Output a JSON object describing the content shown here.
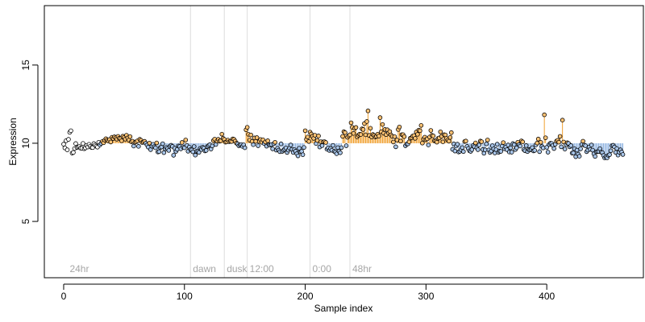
{
  "chart_data": {
    "type": "scatter",
    "title": "",
    "xlabel": "Sample index",
    "ylabel": "Expression",
    "xlim": [
      -16,
      480
    ],
    "ylim": [
      1.4,
      18.8
    ],
    "xticks": [
      0,
      100,
      200,
      300,
      400
    ],
    "yticks": [
      5,
      10,
      15
    ],
    "grid": false,
    "legend": "none",
    "baseline_from_index": 30,
    "baseline_level": 10.0,
    "annotations": [
      {
        "x": 3,
        "label": "24hr",
        "vline": false
      },
      {
        "x": 105,
        "label": "dawn",
        "vline": true
      },
      {
        "x": 133,
        "label": "dusk",
        "vline": true
      },
      {
        "x": 152,
        "label": "12:00",
        "vline": true
      },
      {
        "x": 204,
        "label": "0:00",
        "vline": true
      },
      {
        "x": 237,
        "label": "48hr",
        "vline": true
      }
    ],
    "series": [
      {
        "x": [
          0,
          1,
          2,
          3,
          4,
          5,
          6,
          7,
          8,
          9,
          10,
          11,
          12,
          13,
          14,
          15,
          16,
          17,
          18,
          19,
          20,
          21,
          22,
          23,
          24,
          25,
          26,
          27,
          28,
          29,
          30,
          31,
          32,
          33,
          34,
          35,
          36,
          37,
          38,
          39,
          40,
          41,
          42,
          43,
          44,
          45,
          46,
          47,
          48,
          49,
          50,
          51,
          52,
          53,
          54,
          55,
          56,
          57,
          58,
          59,
          60,
          61,
          62,
          63,
          64,
          65,
          66,
          67,
          68,
          69,
          70,
          71,
          72,
          73,
          74,
          75,
          76,
          77,
          78,
          79,
          80,
          81,
          82,
          83,
          84,
          85,
          86,
          87,
          88,
          89,
          90,
          91,
          92,
          93,
          94,
          95,
          96,
          97,
          98,
          99,
          100,
          101,
          102,
          103,
          104,
          105,
          106,
          107,
          108,
          109,
          110,
          111,
          112,
          113,
          114,
          115,
          116,
          117,
          118,
          119,
          120,
          121,
          122,
          123,
          124,
          125,
          126,
          127,
          128,
          129,
          130,
          131,
          132,
          133,
          134,
          135,
          136,
          137,
          138,
          139,
          140,
          141,
          142,
          143,
          144,
          145,
          146,
          147,
          148,
          149,
          150,
          151,
          152,
          153,
          154,
          155,
          156,
          157,
          158,
          159,
          160,
          161,
          162,
          163,
          164,
          165,
          166,
          167,
          168,
          169,
          170,
          171,
          172,
          173,
          174,
          175,
          176,
          177,
          178,
          179,
          180,
          181,
          182,
          183,
          184,
          185,
          186,
          187,
          188,
          189,
          190,
          191,
          192,
          193,
          194,
          195,
          196,
          197,
          198,
          199,
          200,
          201,
          202,
          203,
          204,
          205,
          206,
          207,
          208,
          209,
          210,
          211,
          212,
          213,
          214,
          215,
          216,
          217,
          218,
          219,
          220,
          221,
          222,
          223,
          224,
          225,
          226,
          227,
          228,
          229,
          230,
          231,
          232,
          233,
          234,
          235,
          236,
          237,
          238,
          239,
          240,
          241,
          242,
          243,
          244,
          245,
          246,
          247,
          248,
          249,
          250,
          251,
          252,
          253,
          254,
          255,
          256,
          257,
          258,
          259,
          260,
          261,
          262,
          263,
          264,
          265,
          266,
          267,
          268,
          269,
          270,
          271,
          272,
          273,
          274,
          275,
          276,
          277,
          278,
          279,
          280,
          281,
          282,
          283,
          284,
          285,
          286,
          287,
          288,
          289,
          290,
          291,
          292,
          293,
          294,
          295,
          296,
          297,
          298,
          299,
          300,
          301,
          302,
          303,
          304,
          305,
          306,
          307,
          308,
          309,
          310,
          311,
          312,
          313,
          314,
          315,
          316,
          317,
          318,
          319,
          320,
          321,
          322,
          323,
          324,
          325,
          326,
          327,
          328,
          329,
          330,
          331,
          332,
          333,
          334,
          335,
          336,
          337,
          338,
          339,
          340,
          341,
          342,
          343,
          344,
          345,
          346,
          347,
          348,
          349,
          350,
          351,
          352,
          353,
          354,
          355,
          356,
          357,
          358,
          359,
          360,
          361,
          362,
          363,
          364,
          365,
          366,
          367,
          368,
          369,
          370,
          371,
          372,
          373,
          374,
          375,
          376,
          377,
          378,
          379,
          380,
          381,
          382,
          383,
          384,
          385,
          386,
          387,
          388,
          389,
          390,
          391,
          392,
          393,
          394,
          395,
          396,
          397,
          398,
          399,
          400,
          401,
          402,
          403,
          404,
          405,
          406,
          407,
          408,
          409,
          410,
          411,
          412,
          413,
          414,
          415,
          416,
          417,
          418,
          419,
          420,
          421,
          422,
          423,
          424,
          425,
          426,
          427,
          428,
          429,
          430,
          431,
          432,
          433,
          434,
          435,
          436,
          437,
          438,
          439,
          440,
          441,
          442,
          443,
          444,
          445,
          446,
          447,
          448,
          449,
          450,
          451,
          452,
          453,
          454,
          455,
          456,
          457,
          458,
          459,
          460,
          461,
          462,
          463
        ],
        "y": [
          9.94,
          9.7,
          10.16,
          9.58,
          10.25,
          10.7,
          10.8,
          9.37,
          9.41,
          9.66,
          9.98,
          9.73,
          9.76,
          9.79,
          9.69,
          9.68,
          9.99,
          9.65,
          9.7,
          9.86,
          9.76,
          9.93,
          9.81,
          9.73,
          9.72,
          9.98,
          9.88,
          9.81,
          9.75,
          10.06,
          9.89,
          9.99,
          10.11,
          10.03,
          10.2,
          10.29,
          10.21,
          10.15,
          10.24,
          10.08,
          10.38,
          10.3,
          10.41,
          10.35,
          10.26,
          10.44,
          10.32,
          10.29,
          10.16,
          10.45,
          10.37,
          10.26,
          10.51,
          10.34,
          10.2,
          10.42,
          10.09,
          10.13,
          9.82,
          10.06,
          10.09,
          10.15,
          9.8,
          10.25,
          10.19,
          10.05,
          10.07,
          10.12,
          10.0,
          9.89,
          9.75,
          10.01,
          9.59,
          9.81,
          9.93,
          9.78,
          9.71,
          10.02,
          9.44,
          9.46,
          9.72,
          9.76,
          9.97,
          9.4,
          9.64,
          9.73,
          9.66,
          9.54,
          9.81,
          9.87,
          9.8,
          9.23,
          9.68,
          9.48,
          9.61,
          9.83,
          9.79,
          9.64,
          10.05,
          9.74,
          9.71,
          10.21,
          9.86,
          9.49,
          9.75,
          9.59,
          9.57,
          9.45,
          9.79,
          9.24,
          9.48,
          9.48,
          9.42,
          9.67,
          9.6,
          9.74,
          9.69,
          9.51,
          9.54,
          9.79,
          9.85,
          9.91,
          9.63,
          9.83,
          10.17,
          10.26,
          9.92,
          10.14,
          10.25,
          10.13,
          10.16,
          10.58,
          10.31,
          10.25,
          10.07,
          10.09,
          10.2,
          10.1,
          10.13,
          10.11,
          10.28,
          10.25,
          10.13,
          10.01,
          9.96,
          9.84,
          9.9,
          9.92,
          9.8,
          9.9,
          9.71,
          10.86,
          11.02,
          10.57,
          10.2,
          10.53,
          10.12,
          9.91,
          10.34,
          10.12,
          10.36,
          9.84,
          10.12,
          10.24,
          10.06,
          10.22,
          9.98,
          10.08,
          9.81,
          10.16,
          9.91,
          9.88,
          9.92,
          9.64,
          9.97,
          10.06,
          9.56,
          9.68,
          9.56,
          9.46,
          9.96,
          9.48,
          9.55,
          9.61,
          9.7,
          9.41,
          9.56,
          9.68,
          9.89,
          9.61,
          9.42,
          9.59,
          9.49,
          9.33,
          9.19,
          9.68,
          9.45,
          9.48,
          9.27,
          9.73,
          10.8,
          10.25,
          10.4,
          10.11,
          10.71,
          10.59,
          10.45,
          10.31,
          10.51,
          9.98,
          10.18,
          10.47,
          9.76,
          10.1,
          9.85,
          10.09,
          10.1,
          10.05,
          9.62,
          9.7,
          9.54,
          9.66,
          9.55,
          9.86,
          9.48,
          9.44,
          9.33,
          9.72,
          9.49,
          9.39,
          9.72,
          10.44,
          10.74,
          10.68,
          9.84,
          10.38,
          10.48,
          10.54,
          11.31,
          11.02,
          10.63,
          10.95,
          11.01,
          10.41,
          10.51,
          10.58,
          10.56,
          10.92,
          10.88,
          11.26,
          10.54,
          11.39,
          12.07,
          10.5,
          10.96,
          10.4,
          10.56,
          10.5,
          10.4,
          10.44,
          10.58,
          10.46,
          11.64,
          10.74,
          11.2,
          10.64,
          10.88,
          10.55,
          10.86,
          10.66,
          10.75,
          10.53,
          10.44,
          10.08,
          10.42,
          9.77,
          10.21,
          10.88,
          11.04,
          10.14,
          10.55,
          10.55,
          10.42,
          9.84,
          9.95,
          9.96,
          10.09,
          10.32,
          10.35,
          10.46,
          10.49,
          10.31,
          10.72,
          10.57,
          10.84,
          10.8,
          11.14,
          10.01,
          10.27,
          10.39,
          10.23,
          10.28,
          9.89,
          10.4,
          10.82,
          10.5,
          10.47,
          10.16,
          10.14,
          10.07,
          10.31,
          10.34,
          10.73,
          10.44,
          10.09,
          10.55,
          10.53,
          10.31,
          10.2,
          10.13,
          10.37,
          10.68,
          9.61,
          9.96,
          9.5,
          9.82,
          9.94,
          9.44,
          9.48,
          9.59,
          9.72,
          9.47,
          10.11,
          10.14,
          9.8,
          9.66,
          9.52,
          9.48,
          9.59,
          9.85,
          9.78,
          10.02,
          9.71,
          9.59,
          9.89,
          10.14,
          10.1,
          9.6,
          9.36,
          9.58,
          9.96,
          10.21,
          9.57,
          9.41,
          9.5,
          9.84,
          9.64,
          9.38,
          9.59,
          9.94,
          9.42,
          9.49,
          9.48,
          9.82,
          10.04,
          9.65,
          9.75,
          9.59,
          9.89,
          9.44,
          9.71,
          9.43,
          9.98,
          9.91,
          9.6,
          9.71,
          10.06,
          9.91,
          9.82,
          10.15,
          10.09,
          9.59,
          9.52,
          9.85,
          9.47,
          9.6,
          9.57,
          9.62,
          9.72,
          9.51,
          9.54,
          9.89,
          10.01,
          10.27,
          9.46,
          10.06,
          9.79,
          9.7,
          11.82,
          10.35,
          9.74,
          9.43,
          9.92,
          10.0,
          9.99,
          9.86,
          9.66,
          9.93,
          10.13,
          10.19,
          10.07,
          10.44,
          9.77,
          11.48,
          10.08,
          9.63,
          9.92,
          10.03,
          9.99,
          9.77,
          9.85,
          9.37,
          9.38,
          9.65,
          9.14,
          9.56,
          9.3,
          9.17,
          9.64,
          9.93,
          10.13,
          9.88,
          9.84,
          9.46,
          9.56,
          9.75,
          9.61,
          9.89,
          9.56,
          9.32,
          9.16,
          9.45,
          9.46,
          9.47,
          9.65,
          9.43,
          9.4,
          9.22,
          9.06,
          9.12,
          9.07,
          9.23,
          9.27,
          9.52,
          9.84,
          9.87,
          9.76,
          9.42,
          9.66,
          9.24,
          9.43,
          9.58,
          9.44,
          9.28
        ]
      }
    ]
  }
}
